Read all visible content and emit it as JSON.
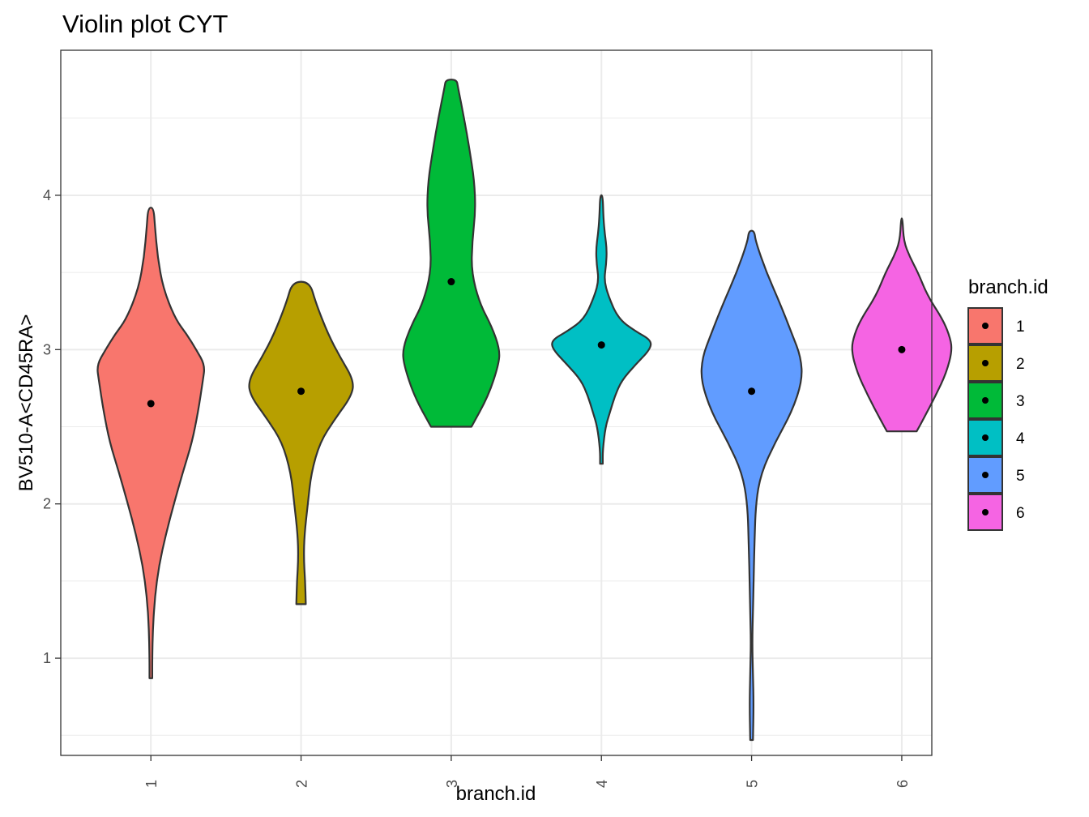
{
  "chart_data": {
    "type": "violin",
    "title": "Violin plot CYT",
    "xlabel": "branch.id",
    "ylabel": "BV510-A<CD45RA>",
    "categories": [
      "1",
      "2",
      "3",
      "4",
      "5",
      "6"
    ],
    "y_ticks": [
      1,
      2,
      3,
      4
    ],
    "ylim": [
      0.37,
      4.94
    ],
    "grid": true,
    "legend": {
      "title": "branch.id",
      "position": "right",
      "entries": [
        "1",
        "2",
        "3",
        "4",
        "5",
        "6"
      ]
    },
    "colors": [
      "#F8766D",
      "#B79F00",
      "#00BA38",
      "#00BFC4",
      "#619CFF",
      "#F564E3"
    ],
    "series": [
      {
        "category": "1",
        "median": 2.65,
        "profile": [
          [
            0.87,
            0.02
          ],
          [
            1.0,
            0.02
          ],
          [
            1.2,
            0.03
          ],
          [
            1.4,
            0.06
          ],
          [
            1.6,
            0.12
          ],
          [
            1.8,
            0.22
          ],
          [
            2.0,
            0.34
          ],
          [
            2.2,
            0.47
          ],
          [
            2.4,
            0.61
          ],
          [
            2.6,
            0.7
          ],
          [
            2.8,
            0.77
          ],
          [
            2.9,
            0.8
          ],
          [
            3.0,
            0.67
          ],
          [
            3.1,
            0.53
          ],
          [
            3.2,
            0.36
          ],
          [
            3.4,
            0.18
          ],
          [
            3.6,
            0.1
          ],
          [
            3.8,
            0.06
          ],
          [
            3.92,
            0.04
          ]
        ]
      },
      {
        "category": "2",
        "median": 2.73,
        "profile": [
          [
            1.35,
            0.07
          ],
          [
            1.5,
            0.06
          ],
          [
            1.65,
            0.04
          ],
          [
            1.8,
            0.05
          ],
          [
            2.0,
            0.1
          ],
          [
            2.2,
            0.15
          ],
          [
            2.4,
            0.28
          ],
          [
            2.55,
            0.5
          ],
          [
            2.7,
            0.75
          ],
          [
            2.8,
            0.78
          ],
          [
            2.95,
            0.58
          ],
          [
            3.1,
            0.4
          ],
          [
            3.3,
            0.22
          ],
          [
            3.44,
            0.13
          ]
        ]
      },
      {
        "category": "3",
        "median": 3.44,
        "profile": [
          [
            2.5,
            0.3
          ],
          [
            2.7,
            0.55
          ],
          [
            2.9,
            0.7
          ],
          [
            3.0,
            0.72
          ],
          [
            3.15,
            0.6
          ],
          [
            3.3,
            0.42
          ],
          [
            3.5,
            0.3
          ],
          [
            3.7,
            0.31
          ],
          [
            3.9,
            0.36
          ],
          [
            4.1,
            0.34
          ],
          [
            4.3,
            0.27
          ],
          [
            4.5,
            0.19
          ],
          [
            4.7,
            0.1
          ],
          [
            4.75,
            0.08
          ]
        ]
      },
      {
        "category": "4",
        "median": 3.03,
        "profile": [
          [
            2.26,
            0.02
          ],
          [
            2.35,
            0.02
          ],
          [
            2.5,
            0.06
          ],
          [
            2.6,
            0.13
          ],
          [
            2.7,
            0.2
          ],
          [
            2.8,
            0.3
          ],
          [
            2.9,
            0.5
          ],
          [
            3.0,
            0.72
          ],
          [
            3.06,
            0.74
          ],
          [
            3.12,
            0.5
          ],
          [
            3.2,
            0.25
          ],
          [
            3.35,
            0.1
          ],
          [
            3.45,
            0.04
          ],
          [
            3.55,
            0.07
          ],
          [
            3.65,
            0.08
          ],
          [
            3.75,
            0.05
          ],
          [
            3.85,
            0.03
          ],
          [
            4.0,
            0.02
          ]
        ]
      },
      {
        "category": "5",
        "median": 2.73,
        "profile": [
          [
            0.47,
            0.02
          ],
          [
            0.7,
            0.03
          ],
          [
            0.9,
            0.02
          ],
          [
            1.1,
            0.01
          ],
          [
            1.3,
            0.02
          ],
          [
            1.5,
            0.03
          ],
          [
            1.7,
            0.04
          ],
          [
            2.0,
            0.06
          ],
          [
            2.2,
            0.14
          ],
          [
            2.4,
            0.35
          ],
          [
            2.6,
            0.6
          ],
          [
            2.8,
            0.75
          ],
          [
            2.95,
            0.73
          ],
          [
            3.1,
            0.6
          ],
          [
            3.3,
            0.42
          ],
          [
            3.5,
            0.22
          ],
          [
            3.7,
            0.06
          ],
          [
            3.77,
            0.04
          ]
        ]
      },
      {
        "category": "6",
        "median": 3.0,
        "profile": [
          [
            2.47,
            0.22
          ],
          [
            2.55,
            0.32
          ],
          [
            2.7,
            0.5
          ],
          [
            2.85,
            0.66
          ],
          [
            3.0,
            0.75
          ],
          [
            3.1,
            0.7
          ],
          [
            3.2,
            0.6
          ],
          [
            3.35,
            0.38
          ],
          [
            3.5,
            0.24
          ],
          [
            3.6,
            0.12
          ],
          [
            3.7,
            0.03
          ],
          [
            3.85,
            0.01
          ]
        ]
      }
    ]
  }
}
